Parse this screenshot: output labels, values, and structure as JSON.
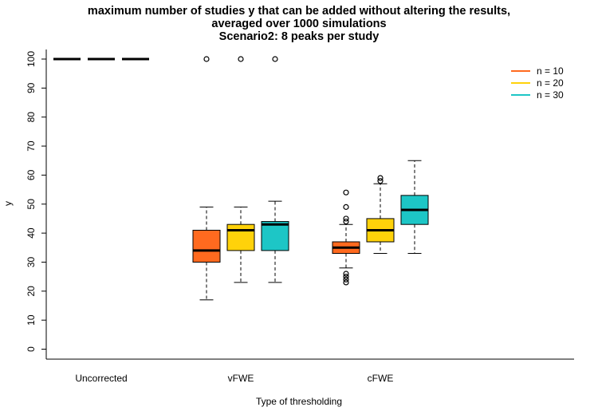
{
  "chart_data": {
    "type": "boxplot",
    "title_lines": [
      "maximum number of studies y that can be added without altering the results,",
      "averaged over 1000 simulations",
      "Scenario2: 8 peaks per study"
    ],
    "xlabel": "Type of thresholding",
    "ylabel": "y",
    "ylim": [
      -3,
      103
    ],
    "yticks": [
      0,
      10,
      20,
      30,
      40,
      50,
      60,
      70,
      80,
      90,
      100
    ],
    "categories": [
      "Uncorrected",
      "vFWE",
      "cFWE"
    ],
    "series": [
      {
        "name": "n = 10",
        "color": "#FF6A1F"
      },
      {
        "name": "n = 20",
        "color": "#FFD20A"
      },
      {
        "name": "n = 30",
        "color": "#1DC6C6"
      }
    ],
    "legend_position": "top-right",
    "boxes": [
      {
        "group": "Uncorrected",
        "series": "n = 10",
        "min": 100,
        "q1": 100,
        "median": 100,
        "q3": 100,
        "max": 100,
        "outliers": []
      },
      {
        "group": "Uncorrected",
        "series": "n = 20",
        "min": 100,
        "q1": 100,
        "median": 100,
        "q3": 100,
        "max": 100,
        "outliers": []
      },
      {
        "group": "Uncorrected",
        "series": "n = 30",
        "min": 100,
        "q1": 100,
        "median": 100,
        "q3": 100,
        "max": 100,
        "outliers": []
      },
      {
        "group": "vFWE",
        "series": "n = 10",
        "min": 17,
        "q1": 30,
        "median": 34,
        "q3": 41,
        "max": 49,
        "outliers": [
          100
        ]
      },
      {
        "group": "vFWE",
        "series": "n = 20",
        "min": 23,
        "q1": 34,
        "median": 41,
        "q3": 43,
        "max": 49,
        "outliers": [
          100
        ]
      },
      {
        "group": "vFWE",
        "series": "n = 30",
        "min": 23,
        "q1": 34,
        "median": 43,
        "q3": 44,
        "max": 51,
        "outliers": [
          100
        ]
      },
      {
        "group": "cFWE",
        "series": "n = 10",
        "min": 28,
        "q1": 33,
        "median": 35,
        "q3": 37,
        "max": 43,
        "outliers": [
          23,
          24,
          25,
          26,
          44,
          45,
          49,
          54
        ]
      },
      {
        "group": "cFWE",
        "series": "n = 20",
        "min": 33,
        "q1": 37,
        "median": 41,
        "q3": 45,
        "max": 57,
        "outliers": [
          58,
          59
        ]
      },
      {
        "group": "cFWE",
        "series": "n = 30",
        "min": 33,
        "q1": 43,
        "median": 48,
        "q3": 53,
        "max": 65,
        "outliers": []
      }
    ]
  }
}
